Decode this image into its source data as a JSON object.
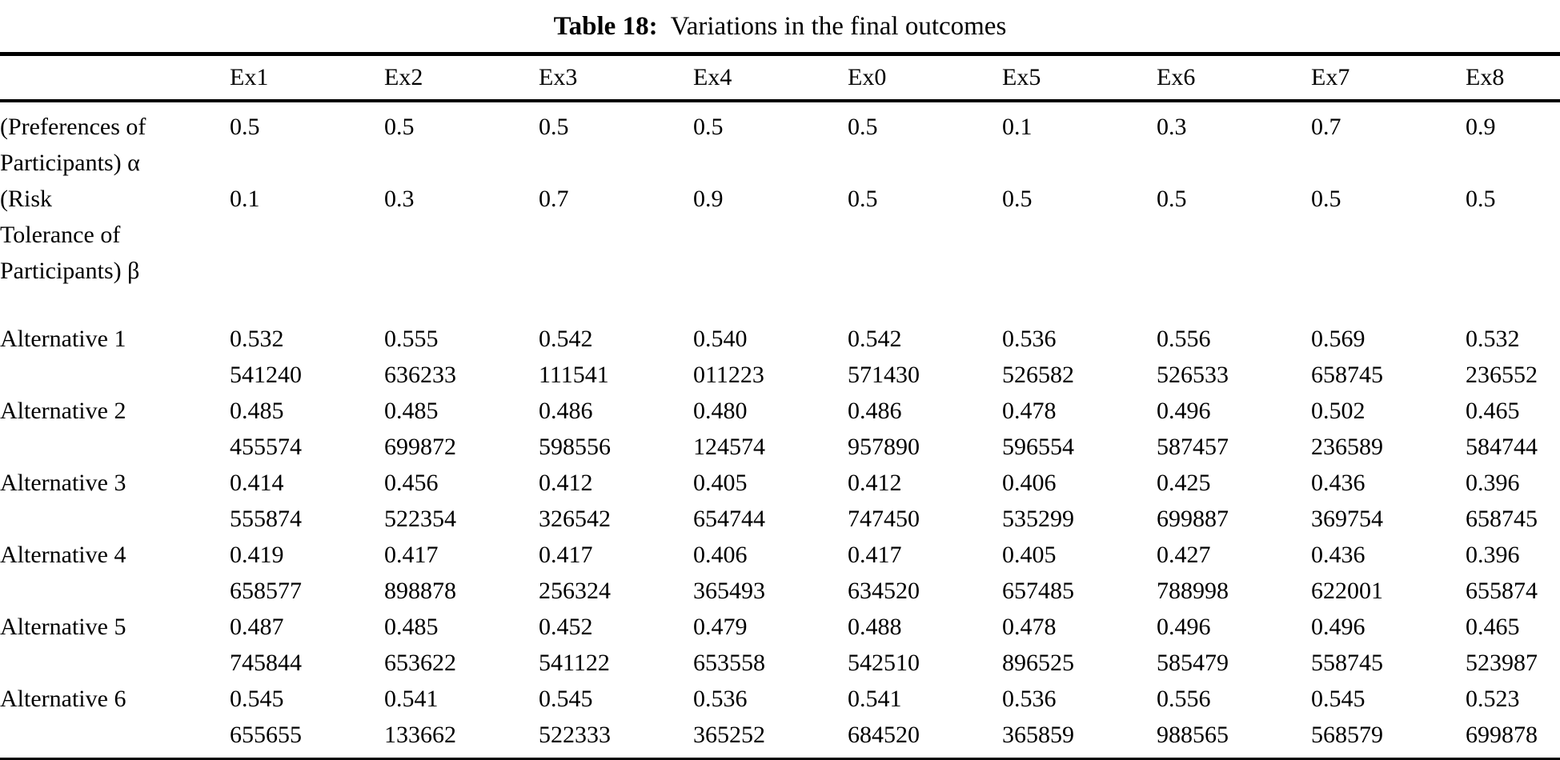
{
  "title": {
    "number_label": "Table 18:",
    "caption": "Variations in the final outcomes"
  },
  "colors": {
    "text": "#000000",
    "background": "#ffffff",
    "rule": "#000000"
  },
  "table": {
    "columns": [
      "",
      "Ex1",
      "Ex2",
      "Ex3",
      "Ex4",
      "Ex0",
      "Ex5",
      "Ex6",
      "Ex7",
      "Ex8"
    ],
    "rows": [
      {
        "label": "(Preferences of\nParticipants) α",
        "values": [
          "0.5",
          "0.5",
          "0.5",
          "0.5",
          "0.5",
          "0.1",
          "0.3",
          "0.7",
          "0.9"
        ]
      },
      {
        "label": "(Risk\nTolerance of\nParticipants) β",
        "values": [
          "0.1",
          "0.3",
          "0.7",
          "0.9",
          "0.5",
          "0.5",
          "0.5",
          "0.5",
          "0.5"
        ]
      },
      {
        "label": "Alternative 1",
        "values": [
          "0.532\n541240",
          "0.555\n636233",
          "0.542\n111541",
          "0.540\n011223",
          "0.542\n571430",
          "0.536\n526582",
          "0.556\n526533",
          "0.569\n658745",
          "0.532\n236552"
        ]
      },
      {
        "label": "Alternative 2",
        "values": [
          "0.485\n455574",
          "0.485\n699872",
          "0.486\n598556",
          "0.480\n124574",
          "0.486\n957890",
          "0.478\n596554",
          "0.496\n587457",
          "0.502\n236589",
          "0.465\n584744"
        ]
      },
      {
        "label": "Alternative 3",
        "values": [
          "0.414\n555874",
          "0.456\n522354",
          "0.412\n326542",
          "0.405\n654744",
          "0.412\n747450",
          "0.406\n535299",
          "0.425\n699887",
          "0.436\n369754",
          "0.396\n658745"
        ]
      },
      {
        "label": "Alternative 4",
        "values": [
          "0.419\n658577",
          "0.417\n898878",
          "0.417\n256324",
          "0.406\n365493",
          "0.417\n634520",
          "0.405\n657485",
          "0.427\n788998",
          "0.436\n622001",
          "0.396\n655874"
        ]
      },
      {
        "label": "Alternative 5",
        "values": [
          "0.487\n745844",
          "0.485\n653622",
          "0.452\n541122",
          "0.479\n653558",
          "0.488\n542510",
          "0.478\n896525",
          "0.496\n585479",
          "0.496\n558745",
          "0.465\n523987"
        ]
      },
      {
        "label": "Alternative 6",
        "values": [
          "0.545\n655655",
          "0.541\n133662",
          "0.545\n522333",
          "0.536\n365252",
          "0.541\n684520",
          "0.536\n365859",
          "0.556\n988565",
          "0.545\n568579",
          "0.523\n699878"
        ]
      }
    ]
  }
}
